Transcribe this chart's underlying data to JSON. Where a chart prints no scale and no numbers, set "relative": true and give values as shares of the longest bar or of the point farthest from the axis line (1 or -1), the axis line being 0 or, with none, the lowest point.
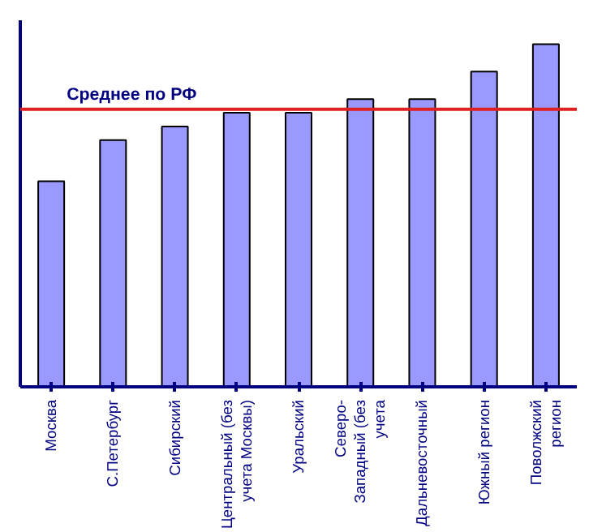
{
  "chart_data": {
    "type": "bar",
    "relative": true,
    "categories": [
      "Москва",
      "С.Петербург",
      "Сибирский",
      "Центральный (без\nучета Москвы)",
      "Уральский",
      "Северо-\nЗападный (без\nучета",
      "Дальневосточный",
      "Южный регион",
      "Поволжский\nрегион"
    ],
    "values": [
      0.6,
      0.72,
      0.76,
      0.8,
      0.8,
      0.84,
      0.84,
      0.92,
      1
    ],
    "color": "#9999ff",
    "ref_lines": [
      {
        "axis": "y",
        "value": 0.81,
        "label": "Среднее по РФ",
        "color": "#e02020"
      }
    ],
    "grid": false
  }
}
